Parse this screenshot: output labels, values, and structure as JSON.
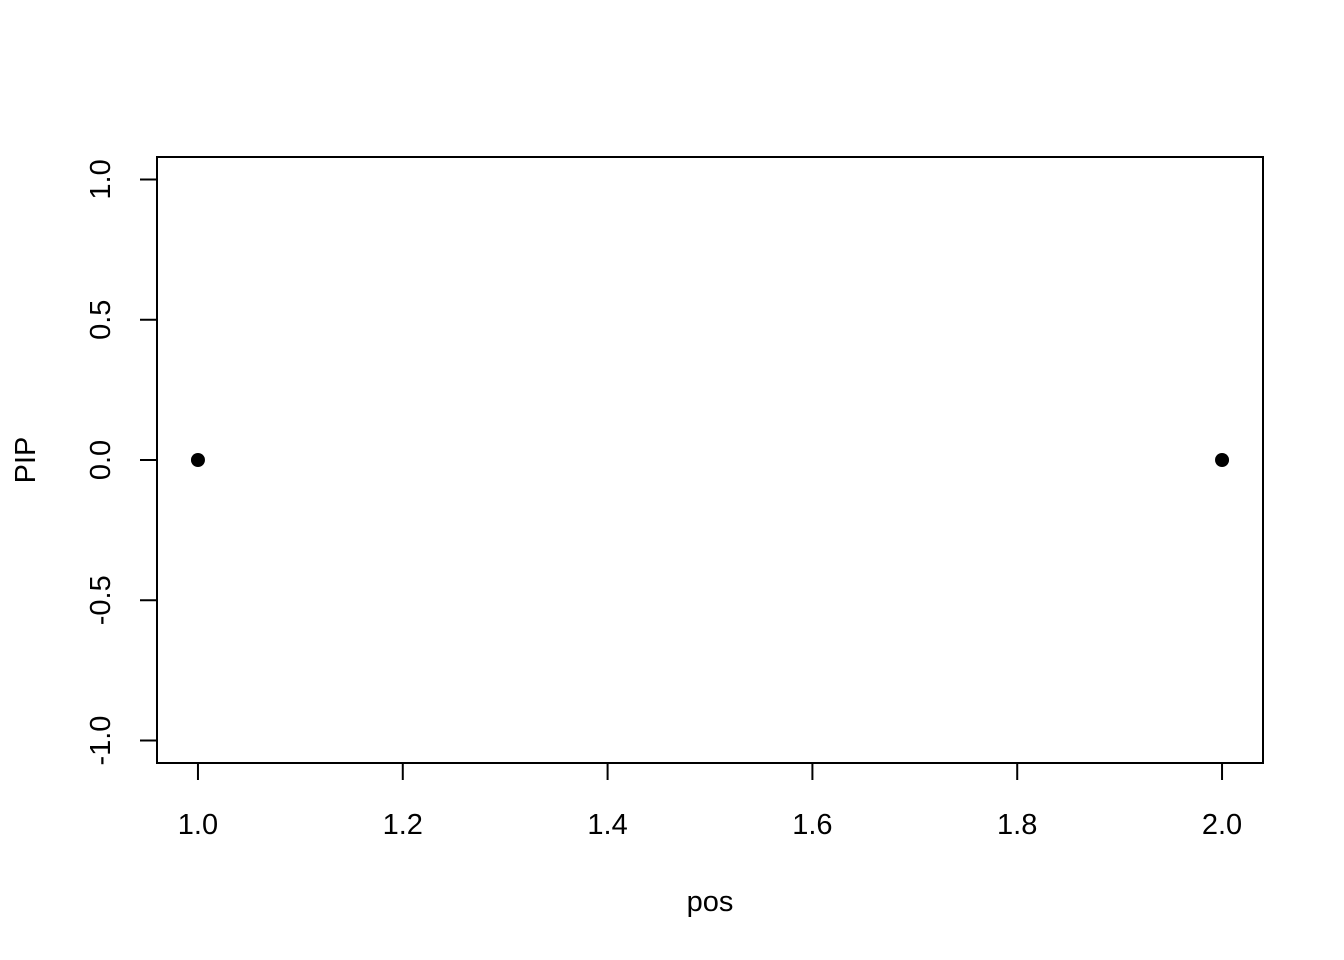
{
  "chart_data": {
    "type": "scatter",
    "title": "",
    "xlabel": "pos",
    "ylabel": "PIP",
    "xlim": [
      0.96,
      2.04
    ],
    "ylim": [
      -1.08,
      1.08
    ],
    "x_ticks": [
      1.0,
      1.2,
      1.4,
      1.6,
      1.8,
      2.0
    ],
    "x_tick_labels": [
      "1.0",
      "1.2",
      "1.4",
      "1.6",
      "1.8",
      "2.0"
    ],
    "y_ticks": [
      -1.0,
      -0.5,
      0.0,
      0.5,
      1.0
    ],
    "y_tick_labels": [
      "-1.0",
      "-0.5",
      "0.0",
      "0.5",
      "1.0"
    ],
    "grid": false,
    "point_color": "#000000",
    "points": [
      {
        "x": 1.0,
        "y": 0.0
      },
      {
        "x": 2.0,
        "y": 0.0
      }
    ]
  }
}
